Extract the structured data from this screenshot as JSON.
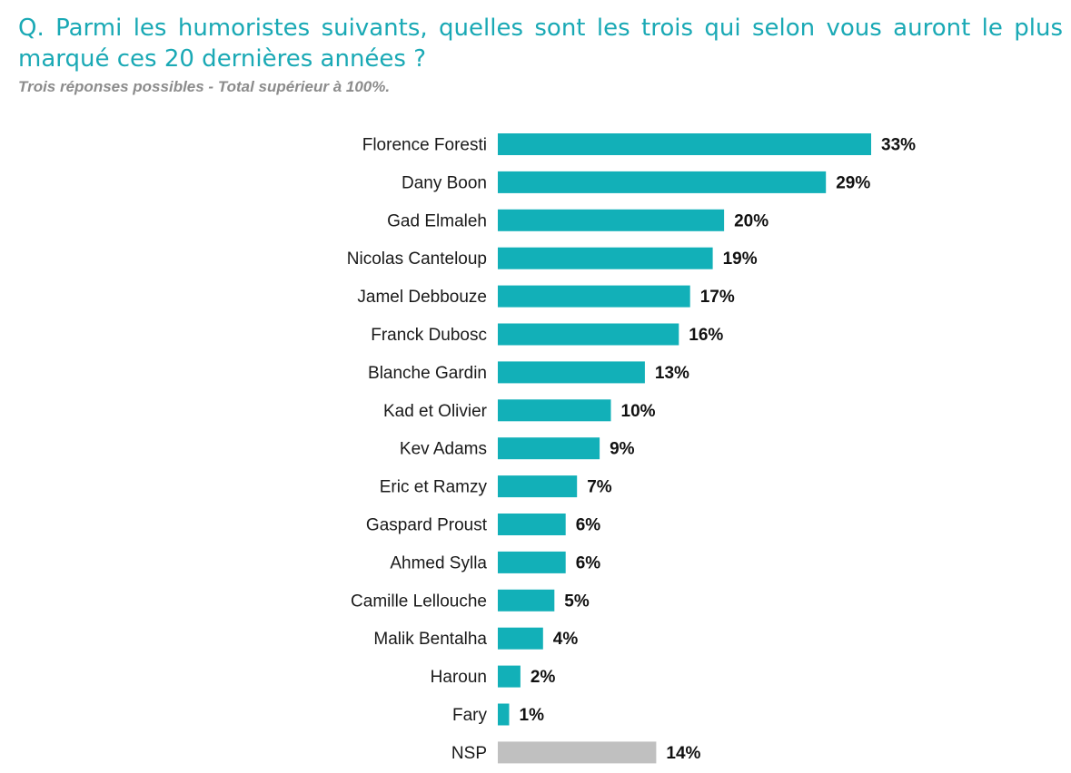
{
  "question": {
    "title": "Q. Parmi les humoristes suivants, quelles sont les trois qui selon vous auront le plus marqué ces 20 dernières années ?",
    "subtitle": "Trois réponses possibles - Total supérieur à 100%."
  },
  "colors": {
    "title": "#1aa9b5",
    "bar": "#12b0b8",
    "bar_nsp": "#c0c0c0"
  },
  "chart_data": {
    "type": "bar",
    "orientation": "horizontal",
    "categories": [
      "Florence Foresti",
      "Dany Boon",
      "Gad Elmaleh",
      "Nicolas Canteloup",
      "Jamel Debbouze",
      "Franck Dubosc",
      "Blanche Gardin",
      "Kad et Olivier",
      "Kev Adams",
      "Eric et Ramzy",
      "Gaspard Proust",
      "Ahmed Sylla",
      "Camille Lellouche",
      "Malik Bentalha",
      "Haroun",
      "Fary",
      "NSP"
    ],
    "values": [
      33,
      29,
      20,
      19,
      17,
      16,
      13,
      10,
      9,
      7,
      6,
      6,
      5,
      4,
      2,
      1,
      14
    ],
    "value_labels": [
      "33%",
      "29%",
      "20%",
      "19%",
      "17%",
      "16%",
      "13%",
      "10%",
      "9%",
      "7%",
      "6%",
      "6%",
      "5%",
      "4%",
      "2%",
      "1%",
      "14%"
    ],
    "highlight": {
      "NSP": "gray"
    },
    "unit": "%",
    "xlim": [
      0,
      33
    ],
    "grid": false,
    "legend": "none",
    "title": "",
    "xlabel": "",
    "ylabel": ""
  }
}
